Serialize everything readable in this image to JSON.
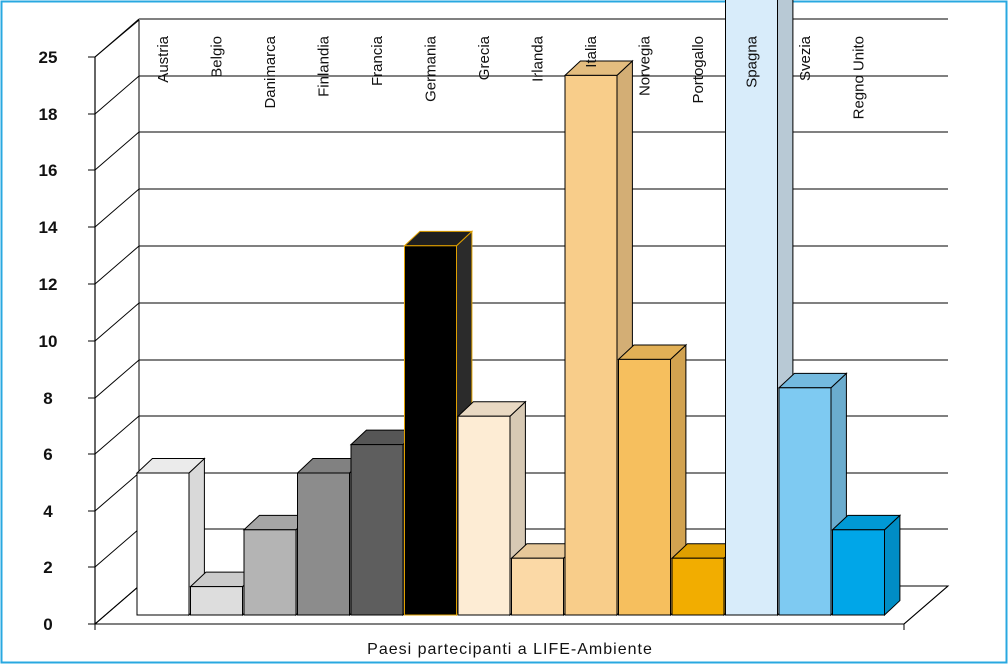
{
  "chart_data": {
    "type": "bar",
    "xlabel": "Paesi partecipanti a LIFE-Ambiente",
    "ytick_labels": [
      "0",
      "2",
      "4",
      "6",
      "8",
      "10",
      "12",
      "14",
      "16",
      "18",
      "25"
    ],
    "categories": [
      "Austria",
      "Belgio",
      "Danimarca",
      "Finlandia",
      "Francia",
      "Germania",
      "Grecia",
      "Irlanda",
      "Italia",
      "Norvegia",
      "Portogallo",
      "Spagna",
      "Svezia",
      "Regno Unito"
    ],
    "values": [
      5,
      1,
      3,
      5,
      6,
      13,
      7,
      2,
      19,
      9,
      2,
      25,
      8,
      3
    ],
    "colors": [
      "#ffffff",
      "#dddddd",
      "#b4b4b4",
      "#8c8c8c",
      "#5e5e5e",
      "#000000",
      "#fdecd4",
      "#fbd9a6",
      "#f8cd8a",
      "#f6bf5e",
      "#f2ad00",
      "#d8ecfa",
      "#7ecaf2",
      "#00a6e8"
    ],
    "frame_color": "#29a8e0",
    "grid": true
  }
}
